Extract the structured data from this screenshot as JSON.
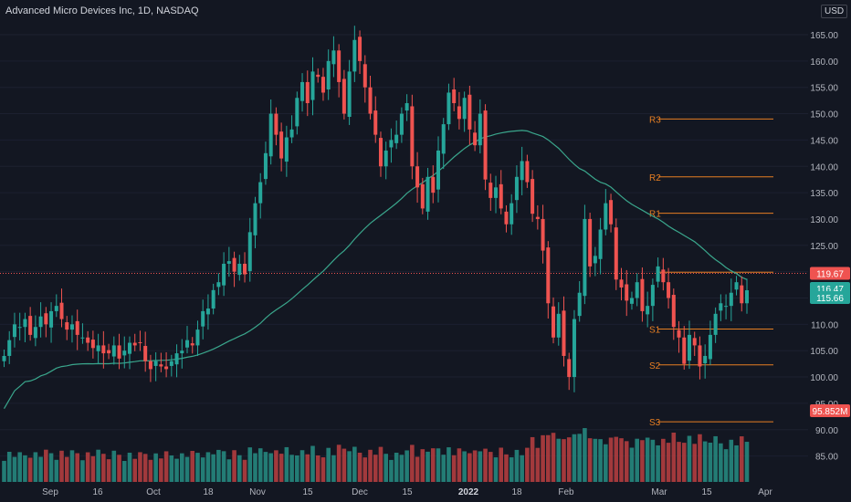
{
  "header": {
    "title": "Advanced Micro Devices Inc, 1D, NASDAQ",
    "currency": "USD"
  },
  "colors": {
    "background": "#131722",
    "up": "#26a69a",
    "down": "#ef5350",
    "volume_up": "#26877e",
    "volume_down": "#b23d3f",
    "ma": "#3aa68c",
    "levels": "#e67e22",
    "axis_text": "#b2b5be"
  },
  "chart_data": {
    "type": "candlestick",
    "symbol": "Advanced Micro Devices Inc",
    "interval": "1D",
    "exchange": "NASDAQ",
    "y_ticks": [
      "165.00",
      "160.00",
      "155.00",
      "150.00",
      "145.00",
      "140.00",
      "135.00",
      "130.00",
      "125.00",
      "120.00",
      "115.00",
      "110.00",
      "105.00",
      "100.00",
      "95.00",
      "90.00",
      "85.00"
    ],
    "x_ticks": [
      "Sep",
      "16",
      "Oct",
      "18",
      "Nov",
      "15",
      "Dec",
      "15",
      "2022",
      "18",
      "Feb",
      "Mar",
      "15",
      "Apr"
    ],
    "ylim": [
      81.5,
      167.5
    ],
    "price_labels": {
      "dotted_line": "119.67",
      "last_price": "116.47",
      "last_price_ext": "115.66",
      "volume": "95.852M"
    },
    "levels": [
      {
        "label": "R3",
        "value": 149.0
      },
      {
        "label": "R2",
        "value": 138.0
      },
      {
        "label": "R1",
        "value": 131.1
      },
      {
        "label": "",
        "value": 119.9
      },
      {
        "label": "S1",
        "value": 109.1
      },
      {
        "label": "S2",
        "value": 102.3
      },
      {
        "label": "S3",
        "value": 91.5
      }
    ],
    "close": [
      104.0,
      107.0,
      110.0,
      109.5,
      111.0,
      108.0,
      109.5,
      111.5,
      110.0,
      112.5,
      113.5,
      111.0,
      109.0,
      110.0,
      108.0,
      107.5,
      106.5,
      105.5,
      106.0,
      104.5,
      104.5,
      106.0,
      103.5,
      105.0,
      106.5,
      106.0,
      106.5,
      103.0,
      101.5,
      103.0,
      102.0,
      101.5,
      103.0,
      104.5,
      105.0,
      107.0,
      106.0,
      109.0,
      112.5,
      113.0,
      116.5,
      118.0,
      121.5,
      122.0,
      120.0,
      121.5,
      119.5,
      127.5,
      133.0,
      137.0,
      142.5,
      150.0,
      146.0,
      141.5,
      145.5,
      147.0,
      153.0,
      156.0,
      152.0,
      158.0,
      157.0,
      154.0,
      160.0,
      162.0,
      156.0,
      150.0,
      158.0,
      164.0,
      160.0,
      155.0,
      150.0,
      146.0,
      140.0,
      143.0,
      145.0,
      146.0,
      150.0,
      152.0,
      140.0,
      136.0,
      132.0,
      138.0,
      135.0,
      143.0,
      148.0,
      154.0,
      152.0,
      149.0,
      153.0,
      147.0,
      144.0,
      150.0,
      137.5,
      134.0,
      136.0,
      132.0,
      129.0,
      133.0,
      138.0,
      141.0,
      137.0,
      131.0,
      130.0,
      124.0,
      114.0,
      107.5,
      112.0,
      104.0,
      100.0,
      111.0,
      116.0,
      130.0,
      121.0,
      123.0,
      128.0,
      133.0,
      129.0,
      118.5,
      117.0,
      114.5,
      115.0,
      118.0,
      112.5,
      113.5,
      117.5,
      121.0,
      118.0,
      115.0,
      109.5,
      107.5,
      102.5,
      108.0,
      106.0,
      102.0,
      104.0,
      108.0,
      112.0,
      114.0,
      113.5,
      116.0,
      118.0,
      114.0,
      116.47
    ],
    "ma_period": 50,
    "volume_unit": "M",
    "volume_ticks": []
  }
}
